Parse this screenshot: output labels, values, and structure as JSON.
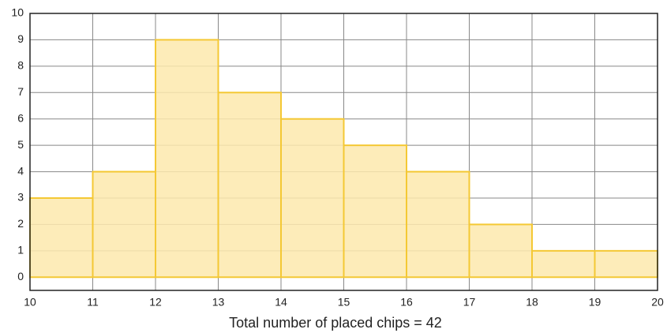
{
  "chart_data": {
    "type": "histogram",
    "xlabel": "Total number of placed chips = 42",
    "bins": [
      10,
      11,
      12,
      13,
      14,
      15,
      16,
      17,
      18,
      19,
      20
    ],
    "values": [
      3,
      4,
      9,
      7,
      6,
      5,
      4,
      2,
      1,
      1
    ],
    "color": "#fde9ad",
    "edge_color": "#f4c834",
    "xlim": [
      10,
      20
    ],
    "xticks": [
      10,
      11,
      12,
      13,
      14,
      15,
      16,
      17,
      18,
      19,
      20
    ],
    "ylim": [
      -0.5,
      10
    ],
    "yticks": [
      0,
      1,
      2,
      3,
      4,
      5,
      6,
      7,
      8,
      9,
      10
    ],
    "grid": true
  }
}
